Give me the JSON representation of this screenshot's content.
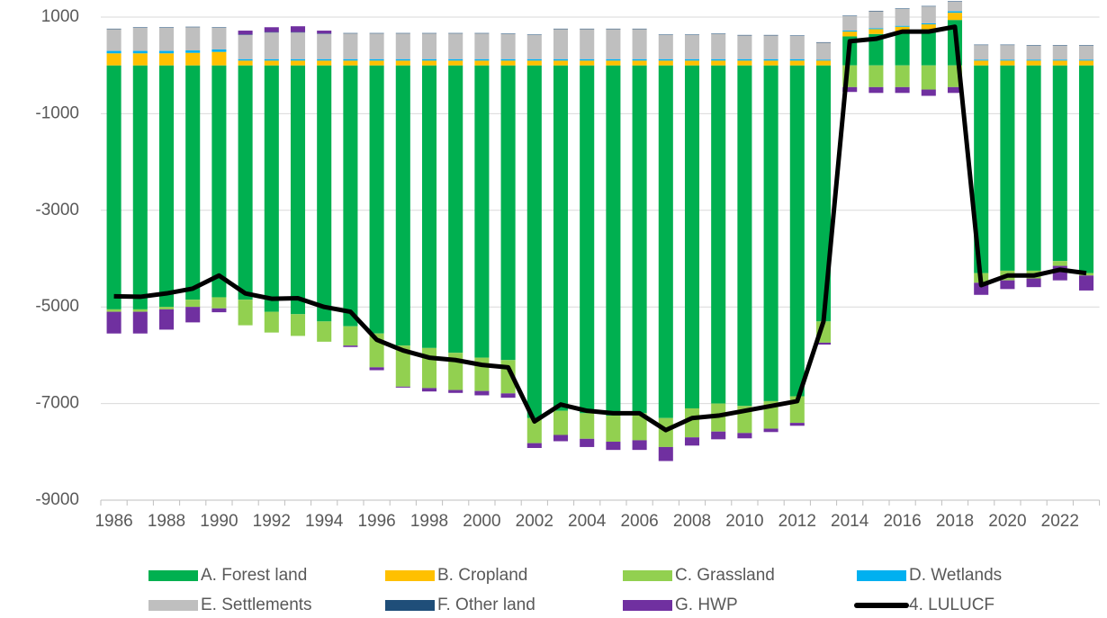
{
  "chart_data": {
    "type": "bar",
    "stacked": true,
    "categories": [
      "1986",
      null,
      "1988",
      null,
      "1990",
      null,
      "1992",
      null,
      "1994",
      null,
      "1996",
      null,
      "1998",
      null,
      "2000",
      null,
      "2002",
      null,
      "2004",
      null,
      "2006",
      null,
      "2008",
      null,
      "2010",
      null,
      "2012",
      null,
      "2014",
      null,
      "2016",
      null,
      "2018",
      null,
      "2020",
      null,
      "2022",
      null
    ],
    "series": [
      {
        "name": "A. Forest land",
        "color": "#00b050",
        "values": [
          -5050,
          -5050,
          -5000,
          -4850,
          -4800,
          -4850,
          -5100,
          -5150,
          -5300,
          -5400,
          -5550,
          -5800,
          -5850,
          -5950,
          -6050,
          -6100,
          -7300,
          -7150,
          -7200,
          -7250,
          -7200,
          -7300,
          -7100,
          -7000,
          -7050,
          -6950,
          -6850,
          -5300,
          600,
          650,
          700,
          750,
          940,
          -4300,
          -4250,
          -4250,
          -4050,
          -4300
        ]
      },
      {
        "name": "B. Cropland",
        "color": "#ffc000",
        "values": [
          250,
          250,
          250,
          260,
          280,
          100,
          100,
          100,
          100,
          100,
          100,
          100,
          100,
          100,
          100,
          100,
          100,
          100,
          100,
          100,
          100,
          100,
          100,
          100,
          100,
          100,
          100,
          100,
          100,
          100,
          100,
          100,
          150,
          100,
          100,
          100,
          100,
          100
        ]
      },
      {
        "name": "C. Grassland",
        "color": "#92d050",
        "values": [
          -50,
          -50,
          -50,
          -150,
          -230,
          -530,
          -430,
          -450,
          -420,
          -400,
          -700,
          -850,
          -830,
          -770,
          -690,
          -690,
          -520,
          -500,
          -530,
          -540,
          -560,
          -600,
          -600,
          -580,
          -560,
          -570,
          -550,
          -440,
          -450,
          -450,
          -450,
          -500,
          -450,
          -200,
          -200,
          -160,
          -100,
          -50
        ]
      },
      {
        "name": "D. Wetlands",
        "color": "#00b0f0",
        "values": [
          50,
          50,
          50,
          50,
          50,
          30,
          30,
          30,
          30,
          30,
          30,
          30,
          30,
          30,
          30,
          30,
          30,
          30,
          30,
          30,
          30,
          30,
          30,
          30,
          30,
          30,
          30,
          20,
          20,
          20,
          20,
          20,
          30,
          20,
          20,
          20,
          20,
          20
        ]
      },
      {
        "name": "E. Settlements",
        "color": "#bfbfbf",
        "values": [
          450,
          480,
          480,
          480,
          450,
          500,
          550,
          550,
          520,
          530,
          530,
          530,
          530,
          530,
          530,
          520,
          500,
          620,
          620,
          620,
          620,
          500,
          500,
          520,
          490,
          490,
          480,
          350,
          300,
          350,
          350,
          350,
          200,
          300,
          300,
          290,
          290,
          290
        ]
      },
      {
        "name": "F. Other land",
        "color": "#1f4e79",
        "values": [
          10,
          10,
          10,
          10,
          10,
          10,
          10,
          10,
          10,
          10,
          10,
          10,
          10,
          10,
          10,
          10,
          10,
          10,
          10,
          10,
          10,
          10,
          10,
          10,
          10,
          10,
          10,
          10,
          10,
          10,
          10,
          10,
          10,
          10,
          10,
          10,
          10,
          10
        ]
      },
      {
        "name": "G. HWP",
        "color": "#7030a0",
        "values": [
          -450,
          -450,
          -420,
          -320,
          -80,
          80,
          100,
          120,
          60,
          -30,
          -60,
          -20,
          -70,
          -60,
          -90,
          -90,
          -100,
          -130,
          -170,
          -170,
          -200,
          -290,
          -170,
          -160,
          -110,
          -70,
          -60,
          -40,
          -100,
          -120,
          -120,
          -130,
          -120,
          -250,
          -180,
          -180,
          -300,
          -310
        ]
      },
      {
        "name": "4. LULUCF",
        "color": "#000000",
        "type": "line",
        "values": [
          -4780,
          -4790,
          -4720,
          -4620,
          -4350,
          -4720,
          -4830,
          -4820,
          -5000,
          -5100,
          -5680,
          -5900,
          -6050,
          -6100,
          -6200,
          -6250,
          -7370,
          -7020,
          -7150,
          -7200,
          -7200,
          -7550,
          -7300,
          -7250,
          -7150,
          -7050,
          -6950,
          -5300,
          500,
          550,
          700,
          700,
          800,
          -4550,
          -4350,
          -4350,
          -4230,
          -4300
        ]
      }
    ],
    "ylim": [
      -9000,
      1350
    ],
    "yticks": [
      -9000,
      -7000,
      -5000,
      -3000,
      -1000,
      1000
    ],
    "grid": true
  }
}
